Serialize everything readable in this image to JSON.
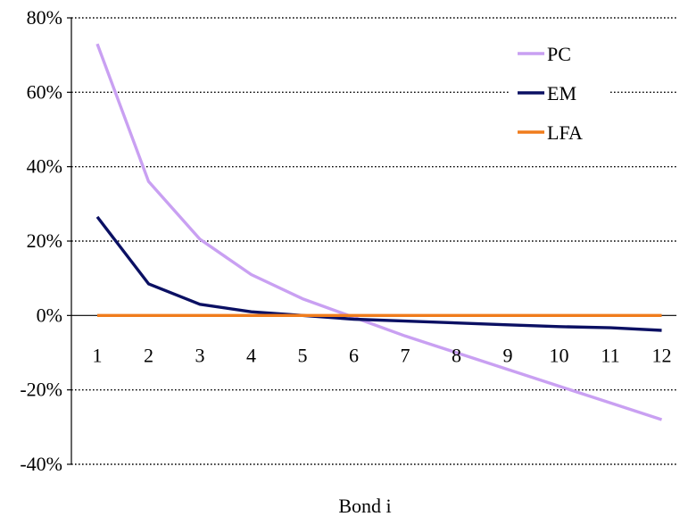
{
  "chart_data": {
    "type": "line",
    "title": "",
    "xlabel": "Bond i",
    "ylabel": "",
    "x": [
      1,
      2,
      3,
      4,
      5,
      6,
      7,
      8,
      9,
      10,
      11,
      12
    ],
    "x_tick_labels": [
      "1",
      "2",
      "3",
      "4",
      "5",
      "6",
      "7",
      "8",
      "9",
      "10",
      "11",
      "12"
    ],
    "ylim": [
      -40,
      80
    ],
    "y_ticks": [
      80,
      60,
      40,
      20,
      0,
      -20,
      -40
    ],
    "y_tick_labels": [
      "80%",
      "60%",
      "40%",
      "20%",
      "0%",
      "-20%",
      "-40%"
    ],
    "grid": true,
    "legend_position": "top-right",
    "series": [
      {
        "name": "PC",
        "color": "#c9a0f2",
        "values": [
          73,
          36,
          20.5,
          11,
          4.5,
          -0.5,
          -5.5,
          -10,
          -14.5,
          -19,
          -23.5,
          -28
        ]
      },
      {
        "name": "EM",
        "color": "#0b1063",
        "values": [
          26.5,
          8.5,
          3,
          1,
          0,
          -1,
          -1.5,
          -2,
          -2.5,
          -3,
          -3.3,
          -4
        ]
      },
      {
        "name": "LFA",
        "color": "#f07c1c",
        "values": [
          0,
          0,
          0,
          0,
          0,
          0,
          0,
          0,
          0,
          0,
          0,
          0
        ]
      }
    ]
  }
}
